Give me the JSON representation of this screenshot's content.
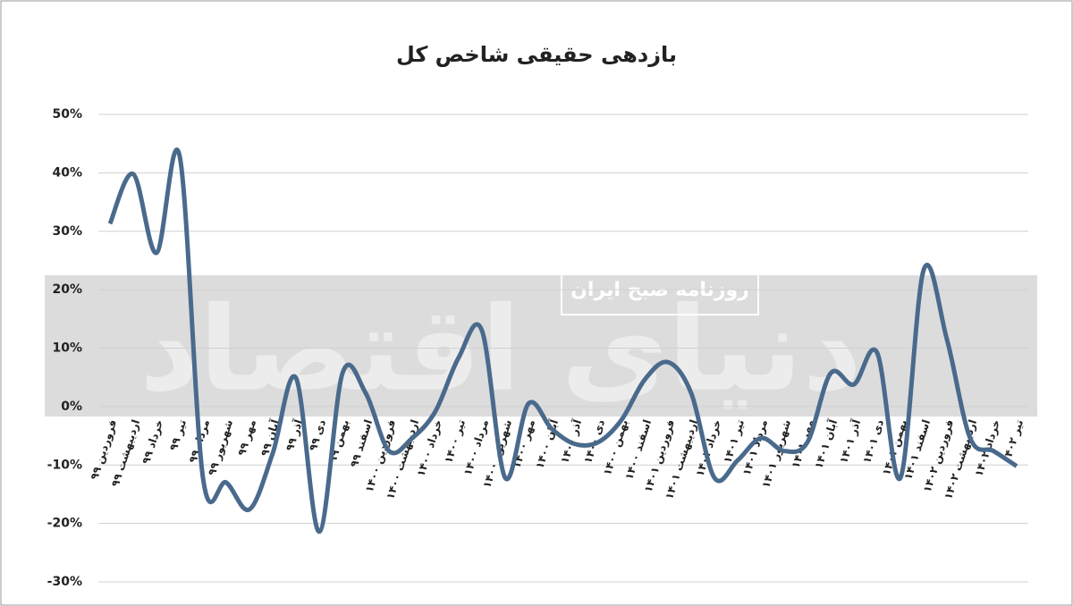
{
  "chart_data": {
    "type": "line",
    "title": "بازدهی حقیقی شاخص کل",
    "watermark": "روزنامه صبح ایران",
    "logo": "دنیای اقتصاد",
    "categories": [
      "فروردین ۹۹",
      "اردیبهشت ۹۹",
      "خرداد ۹۹",
      "تیر ۹۹",
      "مرداد ۹۹",
      "شهریور ۹۹",
      "مهر ۹۹",
      "آبان ۹۹",
      "آذر ۹۹",
      "دی ۹۹",
      "بهمن ۹۹",
      "اسفند ۹۹",
      "فروردین ۱۴۰۰",
      "اردیبهشت ۱۴۰۰",
      "خرداد ۱۴۰۰",
      "تیر ۱۴۰۰",
      "مرداد ۱۴۰۰",
      "شهریور ۱۴۰۰",
      "مهر ۱۴۰۰",
      "آبان ۱۴۰۰",
      "آذر ۱۴۰۰",
      "دی ۱۴۰۰",
      "بهمن ۱۴۰۰",
      "اسفند ۱۴۰۰",
      "فروردین ۱۴۰۱",
      "اردیبهشت ۱۴۰۱",
      "خرداد ۱۴۰۱",
      "تیر ۱۴۰۱",
      "مرداد ۱۴۰۱",
      "شهریور ۱۴۰۱",
      "مهر ۱۴۰۱",
      "آبان ۱۴۰۱",
      "آذر ۱۴۰۱",
      "دی ۱۴۰۱",
      "بهمن ۱۴۰۱",
      "اسفند ۱۴۰۱",
      "فروردین ۱۴۰۲",
      "اردیبهشت ۱۴۰۲",
      "خرداد ۱۴۰۲",
      "تیر ۱۴۰۲"
    ],
    "values": [
      31.3,
      39.8,
      26.3,
      42.8,
      -12.2,
      -13,
      -17.6,
      -8,
      4.9,
      -21.4,
      5.7,
      2.3,
      -7.6,
      -5.4,
      -0.8,
      8.4,
      13,
      -12.2,
      0.5,
      -3.8,
      -6.4,
      -6.1,
      -2.3,
      4.6,
      7.6,
      2.3,
      -12.2,
      -9.2,
      -5.4,
      -7.6,
      -6.1,
      5.7,
      3.8,
      9.2,
      -12.2,
      23.4,
      11.5,
      -5.4,
      -7.6,
      -10.2
    ],
    "color": "#4a6a8c",
    "ylim": [
      -30,
      50
    ],
    "yticks": [
      {
        "value": -30,
        "label": "-30%"
      },
      {
        "value": -20,
        "label": "-20%"
      },
      {
        "value": -10,
        "label": "-10%"
      },
      {
        "value": 0,
        "label": "0%"
      },
      {
        "value": 10,
        "label": "10%"
      },
      {
        "value": 20,
        "label": "20%"
      },
      {
        "value": 30,
        "label": "30%"
      },
      {
        "value": 40,
        "label": "40%"
      },
      {
        "value": 50,
        "label": "50%"
      }
    ],
    "grid": true
  }
}
